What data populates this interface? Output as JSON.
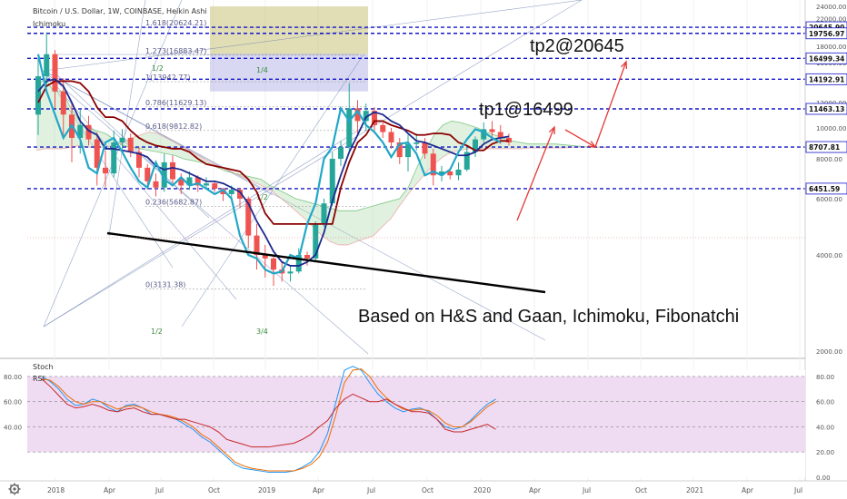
{
  "header": {
    "title": "Bitcoin / U.S. Dollar, 1W, COINBASE, Heikin Ashi",
    "indicator": "Ichimoku"
  },
  "oscillator": {
    "stoch_label": "Stoch",
    "rsi_label": "RSI"
  },
  "annotations": {
    "tp1": "tp1@16499",
    "tp2": "tp2@20645",
    "note": "Based on H&S and Gaan, Ichimoku, Fibonatchi"
  },
  "icons": {
    "settings": "gear-icon"
  },
  "colors": {
    "up": "#26a69a",
    "down": "#ef5350",
    "tenkan": "#1c2a8f",
    "kijun": "#8b0000",
    "chikou": "#22a7c8",
    "level_line": "#1515c8",
    "stoch_k": "#2196f3",
    "stoch_d": "#ef6c00",
    "rsi": "#c62828",
    "osc_band": "#e1bee7"
  },
  "chart_data": [
    {
      "type": "candlestick",
      "title": "Bitcoin / U.S. Dollar, 1W, COINBASE, Heikin Ashi",
      "ylim": [
        2000,
        24000
      ],
      "y_ticks": [
        "24000.00",
        "22000.00",
        "20000.00",
        "18000.00",
        "16000.00",
        "14000.00",
        "12000.00",
        "10000.00",
        "8000.00",
        "6000.00",
        "4000.00",
        "2000.00"
      ],
      "x_ticks": [
        "2018",
        "Apr",
        "Jul",
        "Oct",
        "2019",
        "Apr",
        "Jul",
        "Oct",
        "2020",
        "Apr",
        "Jul",
        "Oct",
        "2021",
        "Apr",
        "Jul"
      ],
      "price_levels": [
        {
          "value": 20645.9,
          "label": "20645.90"
        },
        {
          "value": 19756.97,
          "label": "19756.97"
        },
        {
          "value": 16499.34,
          "label": "16499.34"
        },
        {
          "value": 14192.91,
          "label": "14192.91"
        },
        {
          "value": 11463.13,
          "label": "11463.13"
        },
        {
          "value": 8707.81,
          "label": "8707.81"
        },
        {
          "value": 6451.59,
          "label": "6451.59"
        }
      ],
      "fib_levels": [
        {
          "label": "1.618(20624.21)",
          "value": 20624.21
        },
        {
          "label": "1.273(16883.47)",
          "value": 16883.47
        },
        {
          "label": "1(13942.77)",
          "value": 13942.77
        },
        {
          "label": "0.786(11629.13)",
          "value": 11629.13
        },
        {
          "label": "0.618(9812.82)",
          "value": 9812.82
        },
        {
          "label": "0.236(5682.87)",
          "value": 5682.87
        },
        {
          "label": "0(3131.38)",
          "value": 3131.38
        }
      ],
      "gann_labels": [
        "1/2",
        "1/4",
        "1/2",
        "3/4",
        "1/2"
      ],
      "candles": [
        [
          11000,
          16500,
          9500,
          14500
        ],
        [
          14500,
          19900,
          13500,
          17000
        ],
        [
          17000,
          17500,
          11500,
          13000
        ],
        [
          13000,
          14300,
          9200,
          11000
        ],
        [
          11000,
          12000,
          7800,
          9300
        ],
        [
          9300,
          11400,
          8300,
          10200
        ],
        [
          10200,
          10900,
          8800,
          9200
        ],
        [
          9200,
          9700,
          6600,
          7500
        ],
        [
          7500,
          8500,
          6500,
          7200
        ],
        [
          7200,
          9800,
          7000,
          9000
        ],
        [
          9000,
          9900,
          8600,
          9300
        ],
        [
          9300,
          9600,
          8100,
          8400
        ],
        [
          8400,
          8700,
          7000,
          7500
        ],
        [
          7500,
          7700,
          6400,
          6800
        ],
        [
          6800,
          7200,
          6100,
          6500
        ],
        [
          6500,
          8300,
          6300,
          7800
        ],
        [
          7800,
          8200,
          6700,
          6900
        ],
        [
          6900,
          7200,
          6200,
          6600
        ],
        [
          6600,
          7300,
          6400,
          7000
        ],
        [
          7000,
          7100,
          6300,
          6600
        ],
        [
          6600,
          7000,
          6400,
          6700
        ],
        [
          6700,
          6800,
          6300,
          6450
        ],
        [
          6450,
          6500,
          5900,
          6200
        ],
        [
          6200,
          6600,
          6000,
          6400
        ],
        [
          6400,
          6500,
          5600,
          6000
        ],
        [
          6000,
          6100,
          4200,
          4600
        ],
        [
          4600,
          5000,
          3600,
          4000
        ],
        [
          4000,
          4300,
          3400,
          3900
        ],
        [
          3900,
          4000,
          3200,
          3600
        ],
        [
          3600,
          3800,
          3300,
          3500
        ],
        [
          3500,
          3700,
          3300,
          3550
        ],
        [
          3550,
          4200,
          3500,
          4000
        ],
        [
          4000,
          4100,
          3700,
          3900
        ],
        [
          3900,
          5100,
          3800,
          5000
        ],
        [
          5000,
          6000,
          4900,
          5800
        ],
        [
          5800,
          8400,
          5700,
          8000
        ],
        [
          8000,
          9100,
          7600,
          8700
        ],
        [
          8700,
          13800,
          8500,
          11500
        ],
        [
          11500,
          12200,
          9500,
          10500
        ],
        [
          10500,
          11900,
          9800,
          11300
        ],
        [
          11300,
          11600,
          9700,
          10200
        ],
        [
          10200,
          10400,
          9300,
          9700
        ],
        [
          9700,
          10000,
          8600,
          9000
        ],
        [
          9000,
          9300,
          7700,
          8100
        ],
        [
          8100,
          9500,
          7300,
          8900
        ],
        [
          8900,
          9600,
          8500,
          9000
        ],
        [
          9000,
          9300,
          8000,
          8300
        ],
        [
          8300,
          8600,
          6600,
          7100
        ],
        [
          7100,
          7600,
          6800,
          7300
        ],
        [
          7300,
          7500,
          6900,
          7100
        ],
        [
          7100,
          7800,
          6850,
          7400
        ],
        [
          7400,
          8800,
          7300,
          8400
        ],
        [
          8400,
          9400,
          8100,
          9200
        ],
        [
          9200,
          10400,
          9000,
          9900
        ],
        [
          9900,
          10500,
          9300,
          9700
        ],
        [
          9700,
          10200,
          8900,
          9300
        ],
        [
          9300,
          9600,
          8800,
          9000
        ]
      ],
      "cloud": [
        {
          "span_a": [
            13500,
            14300,
            13000,
            13000,
            11500,
            10500,
            10000,
            9800,
            9600,
            9200,
            8800,
            8700,
            8600,
            8500,
            8400,
            8300,
            8200,
            8000,
            7900,
            7800,
            7700,
            7500,
            7300,
            7200,
            7100,
            7000,
            6900,
            6600,
            6400,
            6200,
            6000,
            5900,
            5800,
            5700,
            5600,
            5500,
            5500,
            5500,
            5600,
            5700,
            5800,
            5900,
            6000,
            6500,
            7500,
            8500,
            9500,
            10200,
            10500,
            10400,
            10200,
            10000,
            9700,
            9500,
            9300,
            9100,
            9000,
            8900,
            8900,
            8900,
            8900,
            8850,
            8800,
            8750,
            8700,
            8700,
            8700
          ],
          "span_b": [
            8500,
            8600,
            8600,
            8600,
            8700,
            8800,
            8700,
            8700,
            8700,
            8800,
            9000,
            9300,
            9500,
            9700,
            9600,
            9300,
            9000,
            8700,
            8400,
            8100,
            7800,
            7600,
            7400,
            7200,
            7000,
            6800,
            6600,
            6400,
            6100,
            5800,
            5500,
            5200,
            4900,
            4600,
            4400,
            4300,
            4300,
            4400,
            4500,
            4600,
            4900,
            5200,
            5700,
            6200,
            6700,
            7200,
            7700,
            8100,
            8400,
            8500,
            8600,
            8600,
            8600,
            8600,
            8600,
            8600,
            8600,
            8650,
            8650,
            8650,
            8650,
            8650,
            8700,
            8700,
            8700,
            8700,
            8700
          ]
        }
      ],
      "tenkan": [
        13000,
        14000,
        14200,
        13500,
        12000,
        10500,
        9800,
        9500,
        8600,
        8600,
        8500,
        8400,
        8300,
        8100,
        7600,
        7400,
        7500,
        7400,
        7200,
        7000,
        6800,
        6800,
        6700,
        6500,
        6300,
        5800,
        5100,
        4600,
        4100,
        3800,
        3700,
        3700,
        3800,
        4000,
        4700,
        5900,
        7100,
        8400,
        9500,
        10800,
        11200,
        11000,
        10500,
        10200,
        9600,
        9100,
        9000,
        8800,
        8600,
        8400,
        8200,
        8200,
        8400,
        8900,
        9200,
        9300,
        9400
      ],
      "kijun": [
        12000,
        13500,
        14000,
        14000,
        14000,
        13800,
        13000,
        11600,
        10800,
        10800,
        10500,
        9800,
        9300,
        9000,
        8800,
        8700,
        8600,
        8600,
        8400,
        8000,
        7700,
        7600,
        7500,
        7400,
        7300,
        6900,
        6300,
        5400,
        5000,
        5000,
        5000,
        5000,
        5000,
        5000,
        5000,
        5000,
        6500,
        7800,
        9000,
        9500,
        10500,
        10500,
        10200,
        10000,
        9800,
        9500,
        9500,
        9600,
        9600,
        9500,
        9000,
        8800,
        8500,
        8500,
        8900,
        9100,
        9100
      ],
      "chikou": [
        17000,
        13000,
        11000,
        9300,
        10200,
        9200,
        7500,
        7200,
        9000,
        9300,
        8400,
        7500,
        6800,
        6500,
        7800,
        6900,
        6600,
        7000,
        6600,
        6700,
        6450,
        6200,
        6400,
        6000,
        4600,
        4000,
        3900,
        3600,
        3500,
        3550,
        4000,
        3900,
        5000,
        5800,
        8000,
        8700,
        11500,
        10500,
        11300,
        10200,
        9700,
        9000,
        8100,
        8900,
        9000,
        8300,
        7100,
        7300,
        7100,
        7400,
        8400,
        9200,
        9900,
        9700,
        9300,
        9000
      ],
      "gann_boxes": [
        {
          "x0": 4000,
          "x1": 13900,
          "y_top": 24000,
          "y_bot": 17000,
          "color": "#c9c27a"
        },
        {
          "x0": 4000,
          "x1": 13900,
          "y_top": 17000,
          "y_bot": 13000,
          "color": "#b8b8e8"
        }
      ],
      "neckline": [
        [
          8500,
          9500
        ],
        [
          17000,
          5800
        ]
      ],
      "projection_arrows": [
        [
          [
            17700,
            10000
          ],
          [
            16600,
            16499
          ]
        ],
        [
          [
            16600,
            16499
          ],
          [
            18000,
            15200
          ]
        ],
        [
          [
            18000,
            15200
          ],
          [
            19300,
            20645
          ]
        ]
      ]
    },
    {
      "type": "line",
      "title": "Stoch RSI",
      "ylim": [
        0,
        90
      ],
      "y_ticks_right": [
        "80.00",
        "60.00",
        "40.00",
        "20.00",
        "0.00"
      ],
      "y_ticks_left": [
        "80.00",
        "60.00",
        "40.00"
      ],
      "series": [
        {
          "name": "Stoch",
          "values": [
            80,
            76,
            70,
            62,
            57,
            58,
            62,
            60,
            55,
            52,
            57,
            58,
            55,
            50,
            50,
            48,
            46,
            42,
            38,
            32,
            28,
            22,
            16,
            10,
            7,
            6,
            5,
            4,
            4,
            4,
            5,
            8,
            12,
            20,
            35,
            60,
            85,
            88,
            85,
            75,
            66,
            60,
            55,
            52,
            54,
            55,
            52,
            46,
            40,
            38,
            40,
            45,
            52,
            58,
            62
          ]
        },
        {
          "name": "Stoch D",
          "values": [
            78,
            77,
            72,
            65,
            60,
            58,
            60,
            60,
            57,
            54,
            56,
            57,
            55,
            52,
            50,
            49,
            47,
            44,
            40,
            34,
            30,
            24,
            18,
            12,
            9,
            7,
            6,
            5,
            5,
            5,
            5,
            7,
            10,
            16,
            28,
            50,
            75,
            85,
            86,
            80,
            70,
            63,
            58,
            54,
            53,
            54,
            53,
            49,
            43,
            40,
            40,
            44,
            50,
            56,
            60
          ]
        },
        {
          "name": "RSI",
          "values": [
            78,
            72,
            65,
            58,
            55,
            56,
            58,
            56,
            53,
            52,
            54,
            55,
            52,
            50,
            50,
            48,
            46,
            46,
            44,
            42,
            40,
            36,
            30,
            28,
            26,
            24,
            24,
            24,
            25,
            26,
            27,
            30,
            34,
            40,
            45,
            55,
            62,
            66,
            63,
            60,
            60,
            62,
            58,
            55,
            52,
            52,
            51,
            46,
            38,
            36,
            36,
            38,
            40,
            42,
            38
          ]
        }
      ],
      "bands": [
        80,
        60,
        40,
        20
      ]
    }
  ]
}
